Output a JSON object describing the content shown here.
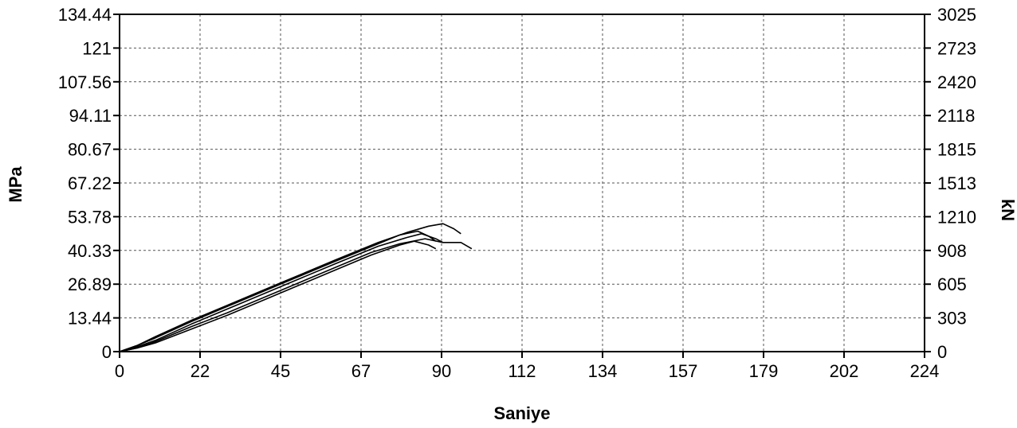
{
  "chart_data": {
    "type": "line",
    "title": "",
    "xlabel": "Saniye",
    "ylabel": "MPa",
    "y2label": "kN",
    "xlim": [
      0,
      224
    ],
    "ylim": [
      0,
      134.44
    ],
    "y2lim": [
      0,
      3025
    ],
    "grid": true,
    "x_ticks": [
      "0",
      "22",
      "45",
      "67",
      "90",
      "112",
      "134",
      "157",
      "179",
      "202",
      "224"
    ],
    "y_ticks": [
      "0",
      "13.44",
      "26.89",
      "40.33",
      "53.78",
      "67.22",
      "80.67",
      "94.11",
      "107.56",
      "121",
      "134.44"
    ],
    "y2_ticks": [
      "0",
      "303",
      "605",
      "908",
      "1210",
      "1513",
      "1815",
      "2118",
      "2420",
      "2723",
      "3025"
    ],
    "series_color": "#000000",
    "series": [
      {
        "x": [
          0,
          5,
          10,
          20,
          30,
          45,
          60,
          70,
          78,
          82,
          86,
          88
        ],
        "y": [
          0,
          1.5,
          3.5,
          9,
          14.5,
          23.5,
          32.5,
          38.5,
          42.5,
          44,
          42.5,
          41
        ]
      },
      {
        "x": [
          0,
          5,
          10,
          20,
          30,
          45,
          60,
          70,
          78,
          85,
          90,
          95,
          98
        ],
        "y": [
          0,
          1.5,
          4,
          10,
          15.5,
          24.5,
          33.5,
          39.5,
          43,
          45,
          43.5,
          43.5,
          41
        ]
      },
      {
        "x": [
          0,
          5,
          10,
          20,
          30,
          45,
          60,
          72,
          80,
          84,
          88,
          90
        ],
        "y": [
          0,
          2,
          4.5,
          11,
          17,
          26,
          35,
          42,
          45.5,
          47,
          45,
          43.5
        ]
      },
      {
        "x": [
          0,
          5,
          10,
          20,
          30,
          45,
          60,
          72,
          78,
          83,
          86,
          88
        ],
        "y": [
          0,
          2.5,
          5.5,
          12,
          18,
          27,
          36,
          43,
          46.5,
          48,
          46,
          44
        ]
      },
      {
        "x": [
          0,
          5,
          10,
          20,
          30,
          45,
          60,
          72,
          80,
          86,
          90,
          93,
          95
        ],
        "y": [
          0,
          2.5,
          6,
          12.5,
          18.5,
          27.5,
          36.5,
          43.5,
          47.5,
          50,
          51,
          49,
          47
        ]
      }
    ]
  }
}
